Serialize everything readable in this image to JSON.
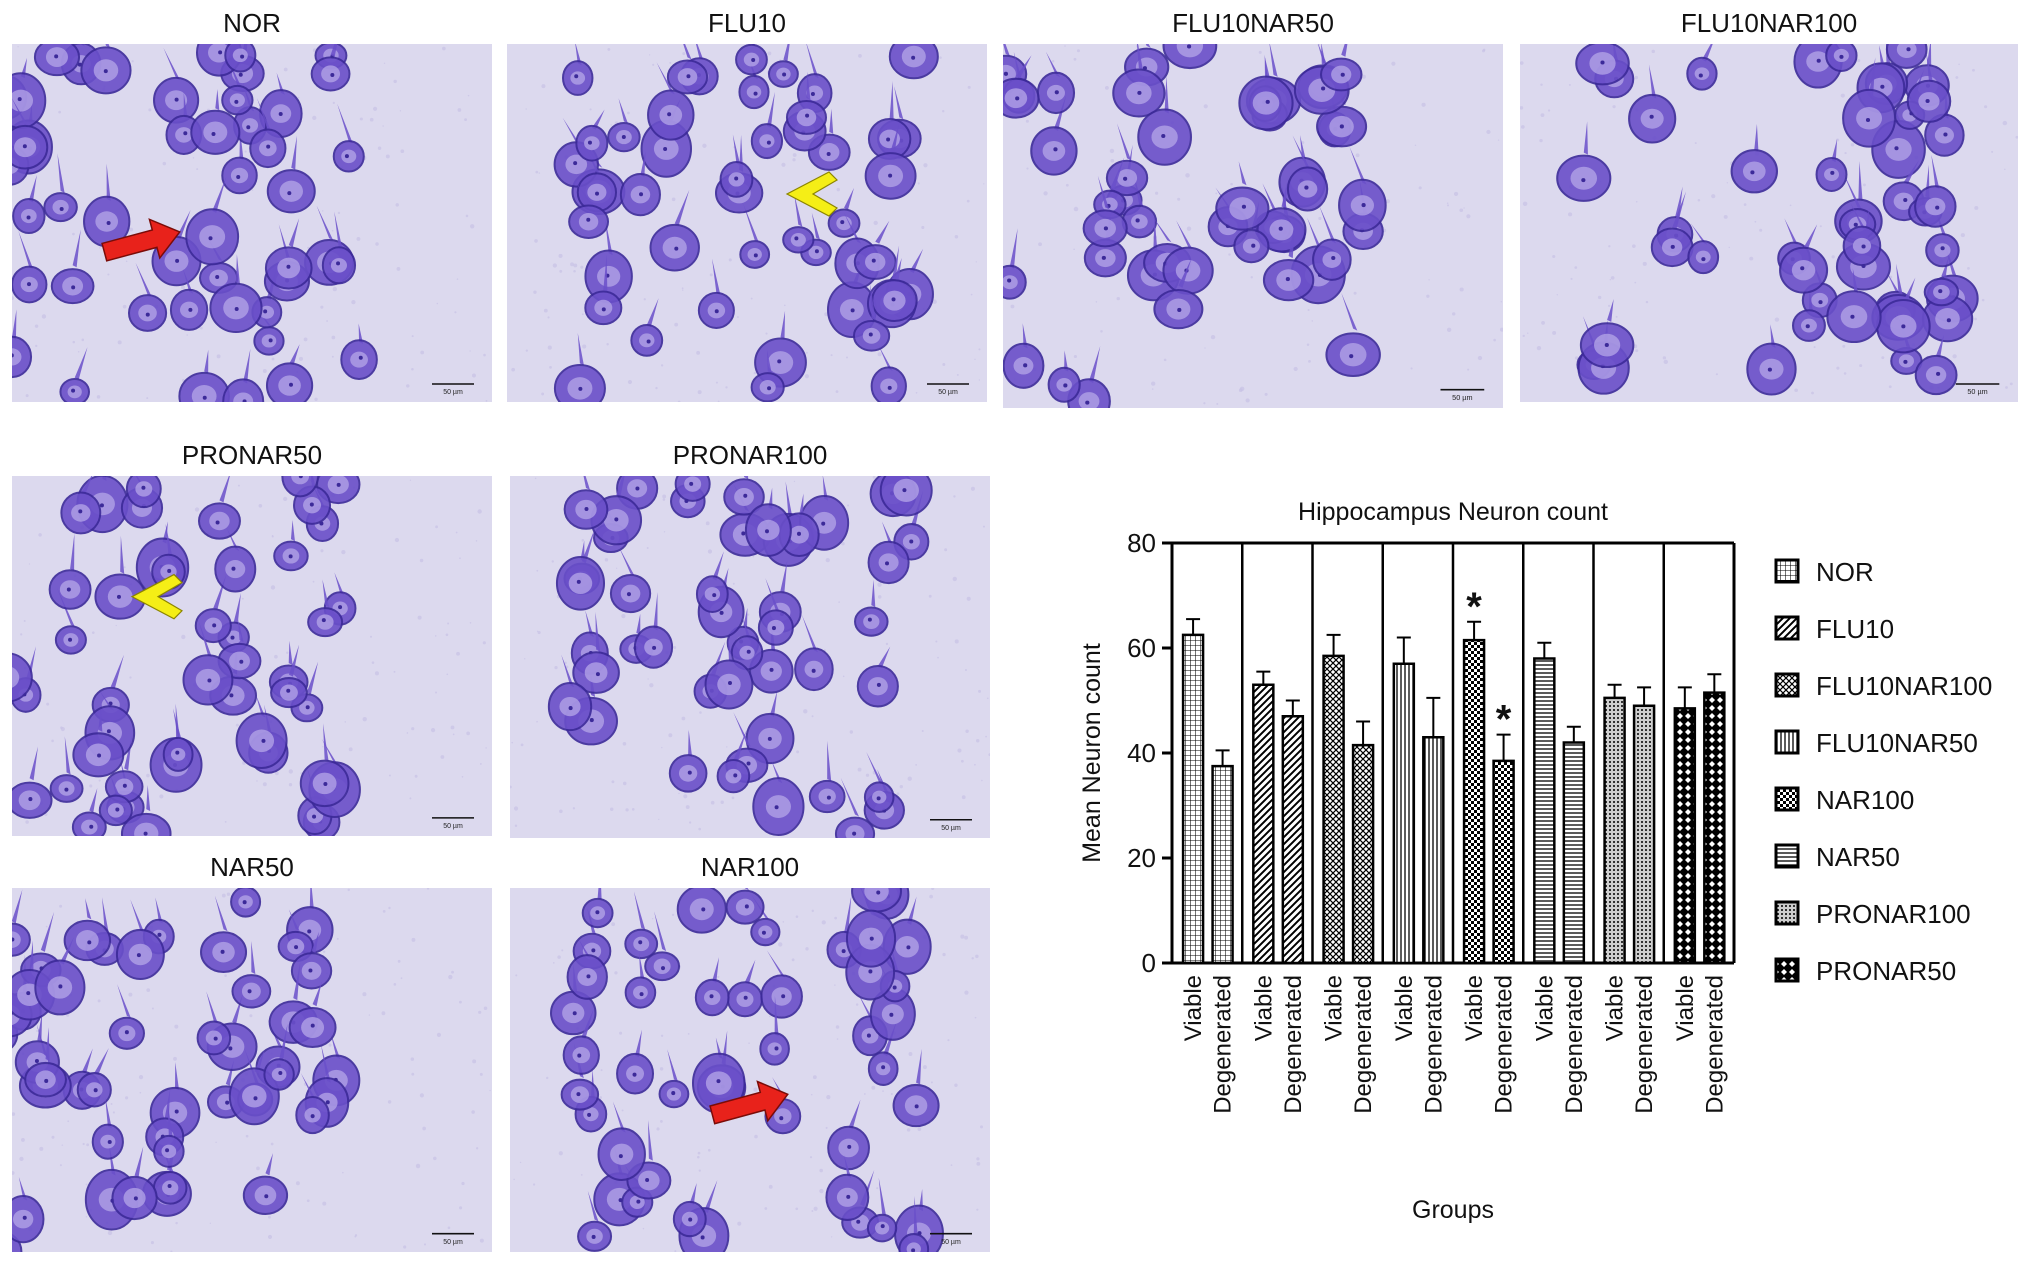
{
  "micrographs": [
    {
      "id": "nor",
      "label": "NOR",
      "scalebar": "50 µm",
      "markers": [
        {
          "type": "red-arrow"
        }
      ]
    },
    {
      "id": "flu10",
      "label": "FLU10",
      "scalebar": "50 µm",
      "markers": [
        {
          "type": "yellow-chevron"
        }
      ]
    },
    {
      "id": "flu10nar50",
      "label": "FLU10NAR50",
      "scalebar": "50 µm",
      "markers": []
    },
    {
      "id": "flu10nar100",
      "label": "FLU10NAR100",
      "scalebar": "50 µm",
      "markers": []
    },
    {
      "id": "pronar50",
      "label": "PRONAR50",
      "scalebar": "50 µm",
      "markers": [
        {
          "type": "yellow-chevron"
        }
      ]
    },
    {
      "id": "pronar100",
      "label": "PRONAR100",
      "scalebar": "50 µm",
      "markers": []
    },
    {
      "id": "nar50",
      "label": "NAR50",
      "scalebar": "50 µm",
      "markers": []
    },
    {
      "id": "nar100",
      "label": "NAR100",
      "scalebar": "50 µm",
      "markers": [
        {
          "type": "red-arrow"
        }
      ]
    }
  ],
  "colors": {
    "stain_background": "#dcd9ee",
    "neuron_fill": "#6a4fc9",
    "neuron_edge": "#3c2a99",
    "arrow": "#e8221b",
    "chevron": "#f5ee16",
    "bar_fill": "#e6e6e6",
    "bar_stroke": "#000000"
  },
  "chart_data": {
    "type": "bar",
    "title": "Hippocampus Neuron count",
    "xlabel": "Groups",
    "ylabel": "Mean Neuron count",
    "ylim": [
      0,
      80
    ],
    "yticks": [
      0,
      20,
      40,
      60,
      80
    ],
    "grid": false,
    "legend_position": "right",
    "categories": [
      "Viable",
      "Degenerated",
      "Viable",
      "Degenerated",
      "Viable",
      "Degenerated",
      "Viable",
      "Degenerated",
      "Viable",
      "Degenerated",
      "Viable",
      "Degenerated",
      "Viable",
      "Degenerated",
      "Viable",
      "Degenerated"
    ],
    "groups": [
      {
        "name": "NOR",
        "pattern": "grid",
        "values": [
          62.5,
          37.5
        ],
        "errors": [
          3,
          3
        ],
        "significance": [
          "",
          ""
        ]
      },
      {
        "name": "FLU10",
        "pattern": "diagonal",
        "values": [
          53,
          47
        ],
        "errors": [
          2.5,
          3
        ],
        "significance": [
          "",
          ""
        ]
      },
      {
        "name": "FLU10NAR100",
        "pattern": "crosshatch",
        "values": [
          58.5,
          41.5
        ],
        "errors": [
          4,
          4.5
        ],
        "significance": [
          "",
          ""
        ]
      },
      {
        "name": "FLU10NAR50",
        "pattern": "vertical",
        "values": [
          57,
          43
        ],
        "errors": [
          5,
          7.5
        ],
        "significance": [
          "",
          ""
        ]
      },
      {
        "name": "NAR100",
        "pattern": "checker",
        "values": [
          61.5,
          38.5
        ],
        "errors": [
          3.5,
          5
        ],
        "significance": [
          "*",
          "*"
        ]
      },
      {
        "name": "NAR50",
        "pattern": "horizontal",
        "values": [
          58,
          42
        ],
        "errors": [
          3,
          3
        ],
        "significance": [
          "",
          ""
        ]
      },
      {
        "name": "PRONAR100",
        "pattern": "dots",
        "values": [
          50.5,
          49
        ],
        "errors": [
          2.5,
          3.5
        ],
        "significance": [
          "",
          ""
        ]
      },
      {
        "name": "PRONAR50",
        "pattern": "diamond",
        "values": [
          48.5,
          51.5
        ],
        "errors": [
          4,
          3.5
        ],
        "significance": [
          "",
          ""
        ]
      }
    ]
  }
}
